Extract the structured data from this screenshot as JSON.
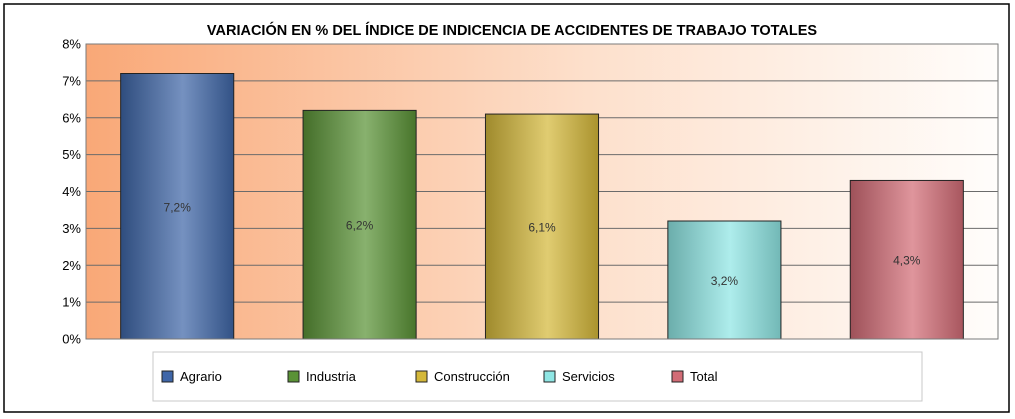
{
  "chart_data": {
    "type": "bar",
    "title": "VARIACIÓN EN % DEL ÍNDICE DE INDICENCIA DE ACCIDENTES DE TRABAJO TOTALES",
    "xlabel": "",
    "ylabel": "",
    "categories": [
      "Agrario",
      "Industria",
      "Construcción",
      "Servicios",
      "Total"
    ],
    "values": [
      7.2,
      6.2,
      6.1,
      3.2,
      4.3
    ],
    "data_labels": [
      "7,2%",
      "6,2%",
      "6,1%",
      "3,2%",
      "4,3%"
    ],
    "colors": [
      "#3f66a8",
      "#5a9236",
      "#d4b83a",
      "#8fe6e4",
      "#d26c76"
    ],
    "ylim": [
      0,
      8
    ],
    "yticks": [
      0,
      1,
      2,
      3,
      4,
      5,
      6,
      7,
      8
    ],
    "ytick_labels": [
      "0%",
      "1%",
      "2%",
      "3%",
      "4%",
      "5%",
      "6%",
      "7%",
      "8%"
    ],
    "grid": true,
    "legend_position": "bottom"
  }
}
